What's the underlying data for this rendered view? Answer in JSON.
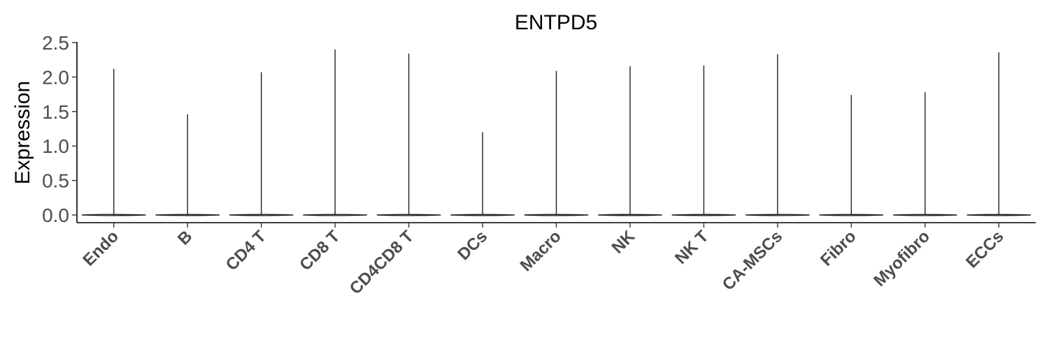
{
  "chart_data": {
    "type": "violin",
    "title": "ENTPD5",
    "ylabel": "Expression",
    "xlabel": "",
    "ylim": [
      -0.12,
      2.5
    ],
    "yticks": [
      0.0,
      0.5,
      1.0,
      1.5,
      2.0,
      2.5
    ],
    "ytick_labels": [
      "0.0",
      "0.5",
      "1.0",
      "1.5",
      "2.0",
      "2.5"
    ],
    "categories": [
      "Endo",
      "B",
      "CD4 T",
      "CD8 T",
      "CD4CD8 T",
      "DCs",
      "Macro",
      "NK",
      "NK T",
      "CA-MSCs",
      "Fibro",
      "Myofibro",
      "ECCs"
    ],
    "max_values": [
      2.12,
      1.46,
      2.07,
      2.4,
      2.34,
      1.2,
      2.09,
      2.16,
      2.17,
      2.33,
      1.74,
      1.78,
      2.36
    ],
    "min_values": [
      0,
      0,
      0,
      0,
      0,
      0,
      0,
      0,
      0,
      0,
      0,
      0,
      0
    ],
    "grid": false,
    "legend": "none"
  }
}
